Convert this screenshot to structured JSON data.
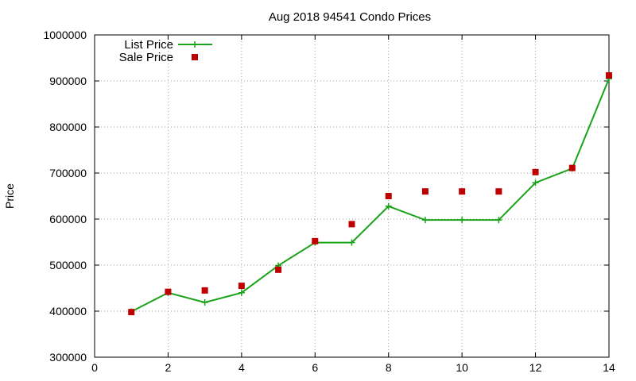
{
  "chart_data": {
    "type": "line",
    "title": "Aug 2018 94541 Condo Prices",
    "xlabel": "",
    "ylabel": "Price",
    "xlim": [
      0,
      14
    ],
    "ylim": [
      300000,
      1000000
    ],
    "x_ticks": [
      0,
      2,
      4,
      6,
      8,
      10,
      12,
      14
    ],
    "y_ticks": [
      300000,
      400000,
      500000,
      600000,
      700000,
      800000,
      900000,
      1000000
    ],
    "grid": true,
    "legend_position": "top-left",
    "series": [
      {
        "name": "List Price",
        "style": "line-with-plus-markers",
        "color": "#1aa31a",
        "x": [
          1,
          2,
          3,
          4,
          5,
          6,
          7,
          8,
          9,
          10,
          11,
          12,
          13,
          14
        ],
        "y": [
          399000,
          440000,
          419000,
          440000,
          499000,
          549000,
          549000,
          628000,
          598000,
          598000,
          598000,
          679000,
          710000,
          905000
        ]
      },
      {
        "name": "Sale Price",
        "style": "square-markers",
        "color": "#c00000",
        "x": [
          1,
          2,
          3,
          4,
          5,
          6,
          7,
          8,
          9,
          10,
          11,
          12,
          13,
          14
        ],
        "y": [
          398000,
          442000,
          445000,
          455000,
          490000,
          552000,
          589000,
          650000,
          660000,
          660000,
          660000,
          702000,
          711000,
          912000
        ]
      }
    ]
  }
}
